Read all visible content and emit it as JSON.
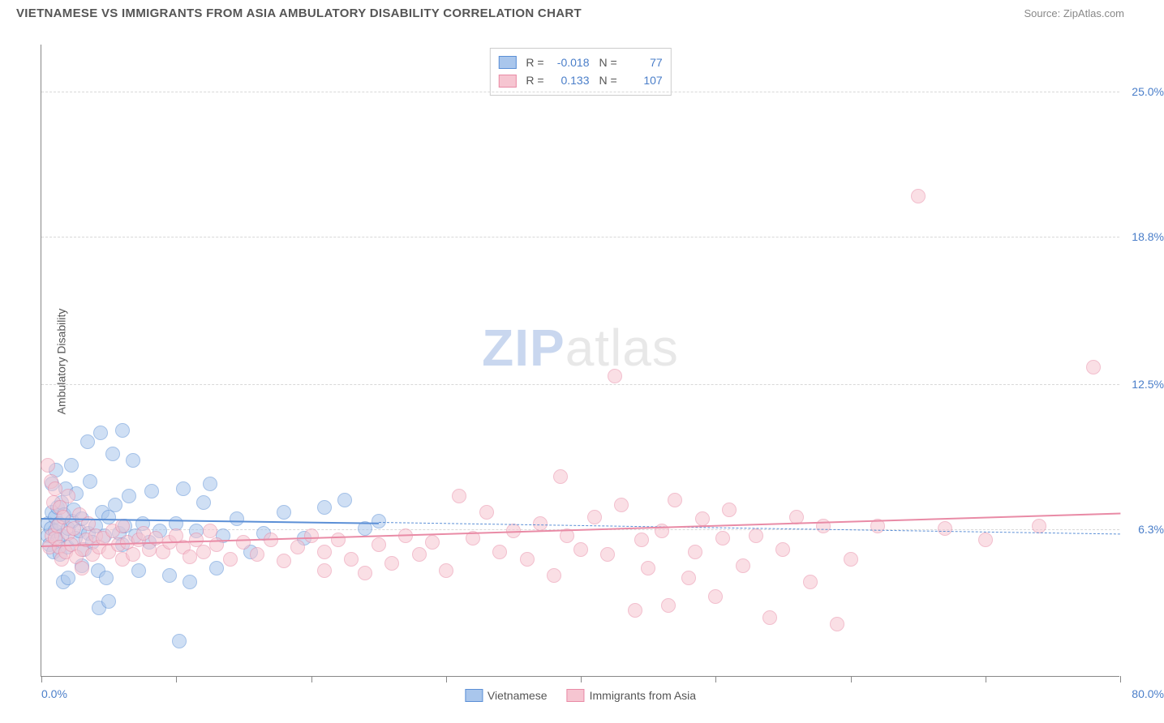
{
  "header": {
    "title": "VIETNAMESE VS IMMIGRANTS FROM ASIA AMBULATORY DISABILITY CORRELATION CHART",
    "source": "Source: ZipAtlas.com"
  },
  "ylabel": "Ambulatory Disability",
  "watermark": {
    "part1": "ZIP",
    "part2": "atlas"
  },
  "chart": {
    "type": "scatter",
    "xlim": [
      0,
      80
    ],
    "ylim": [
      0,
      27
    ],
    "yticks": [
      {
        "value": 6.3,
        "label": "6.3%"
      },
      {
        "value": 12.5,
        "label": "12.5%"
      },
      {
        "value": 18.8,
        "label": "18.8%"
      },
      {
        "value": 25.0,
        "label": "25.0%"
      }
    ],
    "xticks_positions": [
      0,
      10,
      20,
      30,
      40,
      50,
      60,
      70,
      80
    ],
    "xaxis_labels": [
      {
        "value": 0,
        "label": "0.0%",
        "align": "left"
      },
      {
        "value": 80,
        "label": "80.0%",
        "align": "right"
      }
    ],
    "background_color": "#ffffff",
    "grid_color": "#d8d8d8",
    "point_radius": 9,
    "point_opacity": 0.55,
    "series": [
      {
        "name": "Vietnamese",
        "fill_color": "#a9c6ec",
        "stroke_color": "#5b8fd6",
        "R": "-0.018",
        "N": "77",
        "trend": {
          "x1": 0,
          "y1": 6.8,
          "x2": 25,
          "y2": 6.6,
          "dash": false,
          "extend_x2": 80,
          "extend_y2": 6.1,
          "extend_dash": true,
          "width": 2.5
        },
        "points": [
          [
            0.5,
            6.0
          ],
          [
            0.5,
            6.5
          ],
          [
            0.6,
            5.6
          ],
          [
            0.7,
            6.3
          ],
          [
            0.8,
            7.0
          ],
          [
            0.8,
            8.2
          ],
          [
            0.9,
            5.3
          ],
          [
            1.0,
            6.2
          ],
          [
            1.0,
            6.8
          ],
          [
            1.1,
            8.8
          ],
          [
            1.2,
            7.2
          ],
          [
            1.2,
            5.8
          ],
          [
            1.3,
            6.5
          ],
          [
            1.4,
            5.2
          ],
          [
            1.5,
            6.0
          ],
          [
            1.5,
            7.4
          ],
          [
            1.6,
            4.0
          ],
          [
            1.7,
            6.9
          ],
          [
            1.8,
            8.0
          ],
          [
            1.9,
            5.5
          ],
          [
            2.0,
            6.3
          ],
          [
            2.0,
            4.2
          ],
          [
            2.2,
            9.0
          ],
          [
            2.3,
            6.6
          ],
          [
            2.4,
            7.1
          ],
          [
            2.5,
            5.9
          ],
          [
            2.6,
            7.8
          ],
          [
            2.8,
            6.2
          ],
          [
            3.0,
            6.7
          ],
          [
            3.0,
            4.7
          ],
          [
            3.2,
            5.4
          ],
          [
            3.4,
            10.0
          ],
          [
            3.5,
            6.1
          ],
          [
            3.6,
            8.3
          ],
          [
            3.8,
            5.7
          ],
          [
            4.0,
            6.4
          ],
          [
            4.2,
            4.5
          ],
          [
            4.3,
            2.9
          ],
          [
            4.4,
            10.4
          ],
          [
            4.5,
            7.0
          ],
          [
            4.7,
            6.0
          ],
          [
            4.8,
            4.2
          ],
          [
            5.0,
            6.8
          ],
          [
            5.0,
            3.2
          ],
          [
            5.3,
            9.5
          ],
          [
            5.5,
            7.3
          ],
          [
            5.8,
            6.1
          ],
          [
            6.0,
            10.5
          ],
          [
            6.0,
            5.6
          ],
          [
            6.2,
            6.4
          ],
          [
            6.5,
            7.7
          ],
          [
            6.8,
            9.2
          ],
          [
            7.0,
            6.0
          ],
          [
            7.2,
            4.5
          ],
          [
            7.5,
            6.5
          ],
          [
            8.0,
            5.7
          ],
          [
            8.2,
            7.9
          ],
          [
            8.8,
            6.2
          ],
          [
            9.5,
            4.3
          ],
          [
            10.0,
            6.5
          ],
          [
            10.2,
            1.5
          ],
          [
            10.5,
            8.0
          ],
          [
            11.0,
            4.0
          ],
          [
            11.5,
            6.2
          ],
          [
            12.0,
            7.4
          ],
          [
            12.5,
            8.2
          ],
          [
            13.0,
            4.6
          ],
          [
            13.5,
            6.0
          ],
          [
            14.5,
            6.7
          ],
          [
            15.5,
            5.3
          ],
          [
            16.5,
            6.1
          ],
          [
            18.0,
            7.0
          ],
          [
            19.5,
            5.9
          ],
          [
            21.0,
            7.2
          ],
          [
            22.5,
            7.5
          ],
          [
            24.0,
            6.3
          ],
          [
            25.0,
            6.6
          ]
        ]
      },
      {
        "name": "Immigrants from Asia",
        "fill_color": "#f6c5d1",
        "stroke_color": "#e98ba6",
        "R": "0.133",
        "N": "107",
        "trend": {
          "x1": 0,
          "y1": 5.6,
          "x2": 80,
          "y2": 7.0,
          "dash": false,
          "width": 2.5
        },
        "points": [
          [
            0.5,
            9.0
          ],
          [
            0.6,
            5.5
          ],
          [
            0.7,
            8.3
          ],
          [
            0.8,
            6.0
          ],
          [
            0.9,
            7.4
          ],
          [
            1.0,
            5.9
          ],
          [
            1.0,
            8.0
          ],
          [
            1.2,
            6.4
          ],
          [
            1.3,
            5.5
          ],
          [
            1.4,
            7.2
          ],
          [
            1.5,
            5.0
          ],
          [
            1.6,
            6.8
          ],
          [
            1.8,
            5.3
          ],
          [
            2.0,
            6.1
          ],
          [
            2.0,
            7.7
          ],
          [
            2.2,
            5.6
          ],
          [
            2.4,
            6.3
          ],
          [
            2.6,
            5.1
          ],
          [
            2.8,
            6.9
          ],
          [
            3.0,
            5.4
          ],
          [
            3.0,
            4.6
          ],
          [
            3.3,
            5.8
          ],
          [
            3.5,
            6.5
          ],
          [
            3.8,
            5.2
          ],
          [
            4.0,
            6.0
          ],
          [
            4.3,
            5.5
          ],
          [
            4.6,
            5.9
          ],
          [
            5.0,
            5.3
          ],
          [
            5.3,
            6.2
          ],
          [
            5.7,
            5.6
          ],
          [
            6.0,
            5.0
          ],
          [
            6.0,
            6.4
          ],
          [
            6.4,
            5.7
          ],
          [
            6.8,
            5.2
          ],
          [
            7.2,
            5.8
          ],
          [
            7.6,
            6.1
          ],
          [
            8.0,
            5.4
          ],
          [
            8.5,
            5.9
          ],
          [
            9.0,
            5.3
          ],
          [
            9.5,
            5.7
          ],
          [
            10.0,
            6.0
          ],
          [
            10.5,
            5.5
          ],
          [
            11.0,
            5.1
          ],
          [
            11.5,
            5.8
          ],
          [
            12.0,
            5.3
          ],
          [
            12.5,
            6.2
          ],
          [
            13.0,
            5.6
          ],
          [
            14.0,
            5.0
          ],
          [
            15.0,
            5.7
          ],
          [
            16.0,
            5.2
          ],
          [
            17.0,
            5.8
          ],
          [
            18.0,
            4.9
          ],
          [
            19.0,
            5.5
          ],
          [
            20.0,
            6.0
          ],
          [
            21.0,
            5.3
          ],
          [
            21.0,
            4.5
          ],
          [
            22.0,
            5.8
          ],
          [
            23.0,
            5.0
          ],
          [
            24.0,
            4.4
          ],
          [
            25.0,
            5.6
          ],
          [
            26.0,
            4.8
          ],
          [
            27.0,
            6.0
          ],
          [
            28.0,
            5.2
          ],
          [
            29.0,
            5.7
          ],
          [
            30.0,
            4.5
          ],
          [
            31.0,
            7.7
          ],
          [
            32.0,
            5.9
          ],
          [
            33.0,
            7.0
          ],
          [
            34.0,
            5.3
          ],
          [
            35.0,
            6.2
          ],
          [
            36.0,
            5.0
          ],
          [
            37.0,
            6.5
          ],
          [
            38.0,
            4.3
          ],
          [
            38.5,
            8.5
          ],
          [
            39.0,
            6.0
          ],
          [
            40.0,
            5.4
          ],
          [
            41.0,
            6.8
          ],
          [
            42.0,
            5.2
          ],
          [
            42.5,
            12.8
          ],
          [
            43.0,
            7.3
          ],
          [
            44.0,
            2.8
          ],
          [
            44.5,
            5.8
          ],
          [
            45.0,
            4.6
          ],
          [
            46.0,
            6.2
          ],
          [
            46.5,
            3.0
          ],
          [
            47.0,
            7.5
          ],
          [
            48.0,
            4.2
          ],
          [
            48.5,
            5.3
          ],
          [
            49.0,
            6.7
          ],
          [
            50.0,
            3.4
          ],
          [
            50.5,
            5.9
          ],
          [
            51.0,
            7.1
          ],
          [
            52.0,
            4.7
          ],
          [
            53.0,
            6.0
          ],
          [
            54.0,
            2.5
          ],
          [
            55.0,
            5.4
          ],
          [
            56.0,
            6.8
          ],
          [
            57.0,
            4.0
          ],
          [
            58.0,
            6.4
          ],
          [
            59.0,
            2.2
          ],
          [
            60.0,
            5.0
          ],
          [
            62.0,
            6.4
          ],
          [
            65.0,
            20.5
          ],
          [
            67.0,
            6.3
          ],
          [
            70.0,
            5.8
          ],
          [
            74.0,
            6.4
          ],
          [
            78.0,
            13.2
          ]
        ]
      }
    ]
  },
  "text_colors": {
    "title": "#555555",
    "axis_value": "#4a7ec9",
    "label": "#555555"
  }
}
